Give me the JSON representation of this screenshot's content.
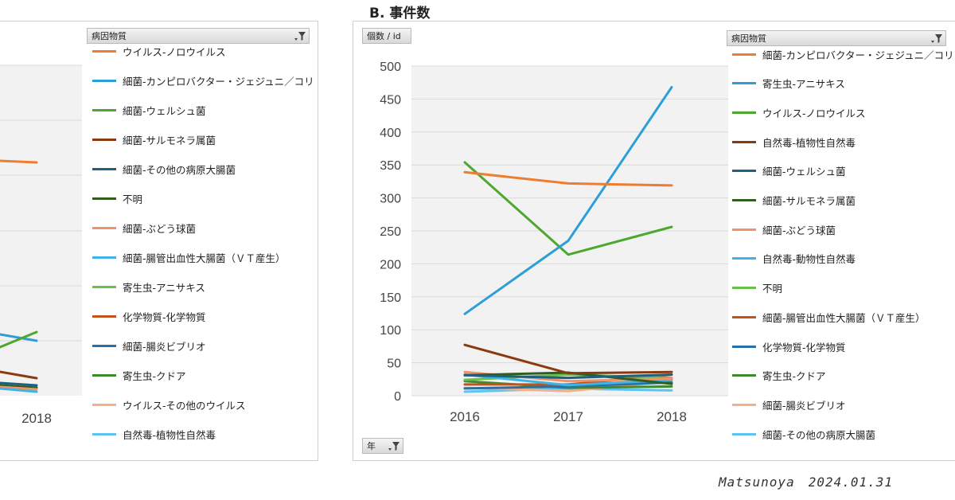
{
  "right_chart": {
    "title": "B. 事件数",
    "unit_button": "個数 / id",
    "filter_label": "病因物質",
    "axis_filter_label": "年",
    "chart_data": {
      "type": "line",
      "title": "B. 事件数",
      "x": [
        "2016",
        "2017",
        "2018"
      ],
      "ylim": [
        0,
        500
      ],
      "yticks": [
        0,
        50,
        100,
        150,
        200,
        250,
        300,
        350,
        400,
        450,
        500
      ],
      "grid": true,
      "legend_position": "right",
      "series": [
        {
          "name": "細菌-カンピロバクター・ジェジュニ／コリ",
          "color": "#ED7D31",
          "values": [
            339,
            322,
            319
          ]
        },
        {
          "name": "寄生虫-アニサキス",
          "color": "#2E9FD6",
          "values": [
            124,
            235,
            468
          ]
        },
        {
          "name": "ウイルス-ノロウイルス",
          "color": "#4EA72E",
          "values": [
            354,
            214,
            256
          ]
        },
        {
          "name": "自然毒-植物性自然毒",
          "color": "#8B3A10",
          "values": [
            77,
            34,
            36
          ]
        },
        {
          "name": "細菌-ウェルシュ菌",
          "color": "#1F5F80",
          "values": [
            31,
            27,
            32
          ]
        },
        {
          "name": "細菌-サルモネラ属菌",
          "color": "#2F5E1E",
          "values": [
            31,
            35,
            18
          ]
        },
        {
          "name": "細菌-ぶどう球菌",
          "color": "#F0926A",
          "values": [
            36,
            22,
            26
          ]
        },
        {
          "name": "自然毒-動物性自然毒",
          "color": "#3FB3E6",
          "values": [
            32,
            16,
            24
          ]
        },
        {
          "name": "不明",
          "color": "#6BC04B",
          "values": [
            24,
            32,
            27
          ]
        },
        {
          "name": "細菌-腸管出血性大腸菌（ＶＴ産生）",
          "color": "#C4521A",
          "values": [
            17,
            17,
            32
          ]
        },
        {
          "name": "化学物質-化学物質",
          "color": "#2770A8",
          "values": [
            11,
            14,
            20
          ]
        },
        {
          "name": "寄生虫-クドア",
          "color": "#3E8A2E",
          "values": [
            22,
            12,
            14
          ]
        },
        {
          "name": "細菌-腸炎ビブリオ",
          "color": "#F4B08A",
          "values": [
            12,
            7,
            22
          ]
        },
        {
          "name": "細菌-その他の病原大腸菌",
          "color": "#5CC4EE",
          "values": [
            6,
            11,
            8
          ]
        }
      ]
    }
  },
  "left_chart": {
    "filter_label": "病因物質",
    "chart_data": {
      "type": "line",
      "x": [
        "2018"
      ],
      "grid": true,
      "legend_position": "right",
      "series": [
        {
          "name": "ウイルス-ノロウイルス",
          "color": "#ED7D31"
        },
        {
          "name": "細菌-カンピロバクター・ジェジュニ／コリ",
          "color": "#2E9FD6"
        },
        {
          "name": "細菌-ウェルシュ菌",
          "color": "#4EA72E"
        },
        {
          "name": "細菌-サルモネラ属菌",
          "color": "#8B3A10"
        },
        {
          "name": "細菌-その他の病原大腸菌",
          "color": "#1F5F80"
        },
        {
          "name": "不明",
          "color": "#2F5E1E"
        },
        {
          "name": "細菌-ぶどう球菌",
          "color": "#F0926A"
        },
        {
          "name": "細菌-腸管出血性大腸菌（ＶＴ産生）",
          "color": "#3FB3E6"
        },
        {
          "name": "寄生虫-アニサキス",
          "color": "#6BC04B"
        },
        {
          "name": "化学物質-化学物質",
          "color": "#C4521A"
        },
        {
          "name": "細菌-腸炎ビブリオ",
          "color": "#2770A8"
        },
        {
          "name": "寄生虫-クドア",
          "color": "#3E8A2E"
        },
        {
          "name": "ウイルス-その他のウイルス",
          "color": "#F4B08A"
        },
        {
          "name": "自然毒-植物性自然毒",
          "color": "#5CC4EE"
        }
      ]
    }
  },
  "signature": "Matsunoya　2024.01.31"
}
